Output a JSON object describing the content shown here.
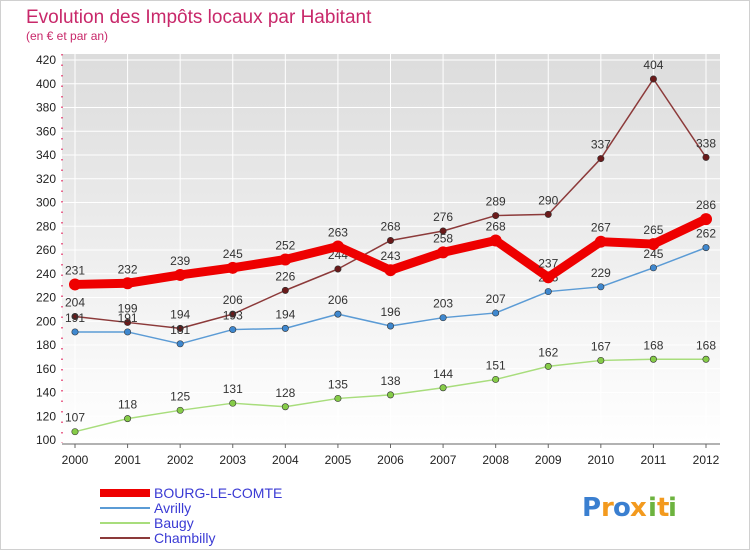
{
  "chart_data": {
    "type": "line",
    "title": "Evolution des Impôts locaux par Habitant",
    "subtitle": "(en € et par an)",
    "xlabel": "",
    "ylabel": "",
    "x": [
      "2000",
      "2001",
      "2002",
      "2003",
      "2004",
      "2005",
      "2006",
      "2007",
      "2008",
      "2009",
      "2010",
      "2011",
      "2012"
    ],
    "ylim": [
      100,
      420
    ],
    "yticks": [
      100,
      120,
      140,
      160,
      180,
      200,
      220,
      240,
      260,
      280,
      300,
      320,
      340,
      360,
      380,
      400,
      420
    ],
    "grid": true,
    "legend_position": "bottom-left",
    "series": [
      {
        "name": "BOURG-LE-COMTE",
        "color": "#ee0000",
        "point_color": "#ee0000",
        "values": [
          231,
          232,
          239,
          245,
          252,
          263,
          243,
          258,
          268,
          237,
          267,
          265,
          286
        ],
        "labels": [
          "231",
          "232",
          "239",
          "245",
          "252",
          "263",
          "243",
          "258",
          "268",
          "237",
          "267",
          "265",
          "286"
        ]
      },
      {
        "name": "Avrilly",
        "color": "#5b9bd5",
        "point_color": "#3f88cf",
        "values": [
          191,
          191,
          181,
          193,
          194,
          206,
          196,
          203,
          207,
          225,
          229,
          245,
          262
        ],
        "labels": [
          "191",
          "191",
          "181",
          "193",
          "194",
          "206",
          "196",
          "203",
          "207",
          "225",
          "229",
          "245",
          "262"
        ]
      },
      {
        "name": "Baugy",
        "color": "#a8dd7c",
        "point_color": "#86cc48",
        "values": [
          107,
          118,
          125,
          131,
          128,
          135,
          138,
          144,
          151,
          162,
          167,
          168,
          168
        ],
        "labels": [
          "107",
          "118",
          "125",
          "131",
          "128",
          "135",
          "138",
          "144",
          "151",
          "162",
          "167",
          "168",
          "168"
        ]
      },
      {
        "name": "Chambilly",
        "color": "#8c3a3a",
        "point_color": "#6a1a1a",
        "values": [
          204,
          199,
          194,
          206,
          226,
          244,
          268,
          276,
          289,
          290,
          337,
          404,
          338
        ],
        "labels": [
          "204",
          "199",
          "194",
          "206",
          "226",
          "244",
          "268",
          "276",
          "289",
          "290",
          "337",
          "404",
          "338"
        ]
      }
    ]
  },
  "brand": {
    "logo_letters": [
      "P",
      "r",
      "o",
      "x",
      "i",
      "t",
      "i"
    ],
    "logo_colors": [
      "#3a7fd0",
      "#f39a1e",
      "#3a7fd0",
      "#f39a1e",
      "#6db33f",
      "#f39a1e",
      "#6db33f"
    ]
  }
}
